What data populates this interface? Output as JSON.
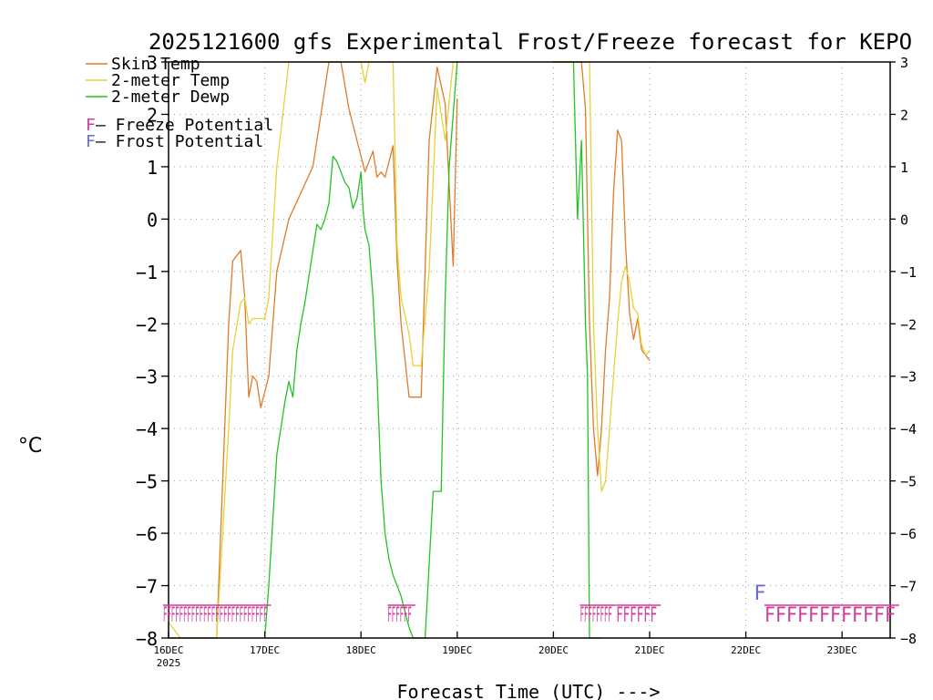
{
  "chart_data": {
    "type": "line",
    "title": "2025121600 gfs Experimental Frost/Freeze forecast for KEPO",
    "ylabel": "°C",
    "xlabel": "Forecast Time (UTC) --->",
    "ylim": [
      -8,
      3
    ],
    "xlim": [
      0,
      180
    ],
    "x_unit": "hours since 2025-12-16 00Z",
    "grid": true,
    "yticks": [
      -8,
      -7,
      -6,
      -5,
      -4,
      -3,
      -2,
      -1,
      0,
      1,
      2,
      3
    ],
    "ytick_labels": [
      "−8",
      "−7",
      "−6",
      "−5",
      "−4",
      "−3",
      "−2",
      "−1",
      "0",
      "1",
      "2",
      "3"
    ],
    "xticks": [
      {
        "hour": 0,
        "label": "16DEC",
        "sublabel": "2025"
      },
      {
        "hour": 24,
        "label": "17DEC",
        "sublabel": ""
      },
      {
        "hour": 48,
        "label": "18DEC",
        "sublabel": ""
      },
      {
        "hour": 72,
        "label": "19DEC",
        "sublabel": ""
      },
      {
        "hour": 96,
        "label": "20DEC",
        "sublabel": ""
      },
      {
        "hour": 120,
        "label": "21DEC",
        "sublabel": ""
      },
      {
        "hour": 144,
        "label": "22DEC",
        "sublabel": ""
      },
      {
        "hour": 168,
        "label": "23DEC",
        "sublabel": ""
      }
    ],
    "legend": [
      {
        "label": "Skin Temp",
        "color": "#e07b2a"
      },
      {
        "label": "2-meter Temp",
        "color": "#e6d23a"
      },
      {
        "label": "2-meter Dewp",
        "color": "#22c322"
      }
    ],
    "potential_legend": [
      {
        "symbol": "F",
        "label": " – Freeze Potential",
        "color": "#d23a9a"
      },
      {
        "symbol": "F",
        "label": " – Frost Potential",
        "color": "#6a6ad8"
      }
    ],
    "series": [
      {
        "name": "Skin Temp",
        "color": "#e07b2a",
        "x": [
          0,
          3,
          6,
          9,
          12,
          15,
          16,
          18,
          19,
          20,
          21,
          22,
          23,
          24,
          25,
          27,
          30,
          33,
          36,
          39,
          40,
          42,
          43,
          45,
          46,
          48,
          49,
          50,
          51,
          52,
          53,
          54,
          56,
          57,
          58,
          60,
          61,
          63,
          65,
          67,
          69,
          71,
          72,
          120
        ],
        "y": [
          -8,
          -8,
          -8,
          -8,
          -8,
          -2,
          -0.8,
          -0.6,
          -1.5,
          -3.4,
          -3,
          -3.1,
          -3.6,
          -3.3,
          -3,
          -1,
          0,
          0.5,
          1,
          2.5,
          3,
          3,
          3,
          2.1,
          1.8,
          1.2,
          0.9,
          1.1,
          1.3,
          0.8,
          0.9,
          0.8,
          1.4,
          -0.8,
          -2,
          -3.4,
          -3.4,
          -3.4,
          1.5,
          2.9,
          2.2,
          -0.9,
          2.3,
          null
        ]
      },
      {
        "name": "Skin Temp (20DEC-21DEC)",
        "color": "#e07b2a",
        "x": [
          96,
          103,
          104,
          105,
          106,
          107,
          108,
          109,
          110,
          111,
          112,
          113,
          114,
          115,
          116,
          117,
          118,
          119,
          120
        ],
        "y": [
          3,
          3,
          2.1,
          -2,
          -4,
          -4.9,
          -4,
          -2.5,
          -1.5,
          0.5,
          1.7,
          1.5,
          -0.5,
          -1.8,
          -2.3,
          -1.9,
          -2.5,
          -2.6,
          -2.7
        ]
      },
      {
        "name": "2-meter Temp",
        "color": "#e6d23a",
        "x": [
          0,
          3,
          6,
          9,
          12,
          15,
          16,
          18,
          19,
          20,
          21,
          22,
          23,
          24,
          25,
          27,
          30,
          33,
          36,
          39,
          42,
          46,
          47,
          48,
          49,
          50,
          52,
          54,
          56,
          57,
          58,
          60,
          61,
          63,
          65,
          67,
          69,
          71,
          72
        ],
        "y": [
          -7.7,
          -8,
          -8,
          -8,
          -8,
          -4,
          -2.5,
          -1.6,
          -1.5,
          -2,
          -1.9,
          -1.9,
          -1.9,
          -1.9,
          -1.5,
          1,
          3,
          3,
          3,
          3,
          3,
          3,
          3,
          3,
          2.6,
          3,
          3,
          3,
          3,
          -0.5,
          -1.5,
          -2.2,
          -2.8,
          -2.8,
          -1,
          2.5,
          1.5,
          3,
          3
        ]
      },
      {
        "name": "2-meter Temp (20DEC-21DEC)",
        "color": "#e6d23a",
        "x": [
          96,
          105,
          106,
          107,
          108,
          109,
          110,
          111,
          112,
          113,
          114,
          115,
          116,
          117,
          118,
          119,
          120
        ],
        "y": [
          3,
          3,
          -2,
          -4,
          -5.2,
          -5,
          -4,
          -3,
          -2,
          -1.2,
          -0.9,
          -1.2,
          -1.7,
          -1.8,
          -2.4,
          -2.6,
          -2.5
        ]
      },
      {
        "name": "2-meter Dewp",
        "color": "#22c322",
        "x": [
          24,
          25,
          27,
          29,
          30,
          31,
          32,
          33,
          34,
          36,
          37,
          38,
          39,
          40,
          41,
          42,
          43,
          44,
          45,
          46,
          47,
          48,
          48.5,
          49,
          50,
          51,
          52,
          53,
          54,
          55,
          56,
          57,
          58,
          59,
          60,
          61,
          62,
          63,
          64,
          66,
          68,
          69,
          70,
          71,
          72
        ],
        "y": [
          -8,
          -7,
          -4.5,
          -3.5,
          -3.1,
          -3.4,
          -2.5,
          -2,
          -1.6,
          -0.6,
          -0.1,
          -0.2,
          0,
          0.3,
          1.2,
          1.1,
          0.9,
          0.7,
          0.6,
          0.2,
          0.4,
          0.9,
          0.2,
          -0.2,
          -0.5,
          -1.5,
          -3,
          -5,
          -6,
          -6.5,
          -6.8,
          -7,
          -7.2,
          -7.5,
          -7.8,
          -8,
          -8,
          -8,
          -8,
          -5.2,
          -5.2,
          -1.5,
          1,
          2,
          3
        ]
      },
      {
        "name": "2-meter Dewp (20DEC-21DEC)",
        "color": "#22c322",
        "x": [
          96,
          101,
          102,
          103,
          104,
          104.5,
          105,
          106,
          107,
          108
        ],
        "y": [
          3,
          3,
          0,
          1.5,
          -2,
          -3,
          -8,
          -8,
          -8,
          -8
        ]
      }
    ],
    "freeze_markers": [
      {
        "start_hour": 0,
        "count": 26,
        "text": "FFFFFFFFFFFFFFFFFFFFFFFFFF"
      },
      {
        "start_hour": 56,
        "count": 6,
        "text": "FFFFFF"
      },
      {
        "start_hour": 104,
        "count": 8,
        "text": "FFFFFFFF"
      },
      {
        "start_hour": 113,
        "count": 6,
        "text": "FFFFFF"
      },
      {
        "start_hour": 150,
        "count": 12,
        "text": "FFFFFFFFFFFF"
      }
    ],
    "frost_markers": [
      {
        "hour": 146,
        "text": "F"
      }
    ],
    "right_axis": true
  }
}
